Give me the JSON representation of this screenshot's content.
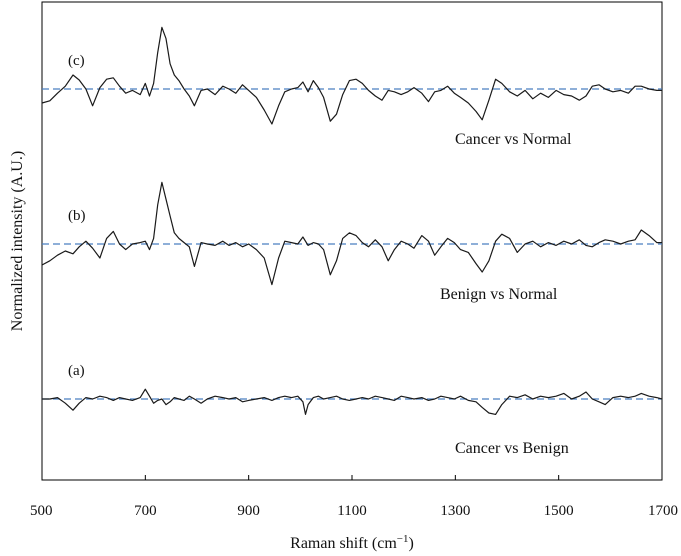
{
  "chart_data": {
    "type": "line",
    "title": "",
    "xlabel": "Raman shift (cm",
    "xlabel_sup": "−1",
    "xlabel_close": ")",
    "ylabel": "Normalized intensity (A.U.)",
    "xlim": [
      500,
      1700
    ],
    "xticks": [
      500,
      700,
      900,
      1100,
      1300,
      1500,
      1700
    ],
    "yticks_shown": false,
    "grid": false,
    "legend": "none",
    "colors": {
      "spectrum": "#1a1a1a",
      "baseline": "#4a7fc1",
      "axis": "#000000"
    },
    "series": [
      {
        "tag": "(c)",
        "label": "Cancer vs Normal",
        "points": [
          [
            500,
            -0.5
          ],
          [
            515,
            -0.42
          ],
          [
            530,
            -0.15
          ],
          [
            545,
            0.1
          ],
          [
            560,
            0.5
          ],
          [
            572,
            0.32
          ],
          [
            585,
            0.0
          ],
          [
            598,
            -0.6
          ],
          [
            612,
            0.05
          ],
          [
            625,
            0.35
          ],
          [
            638,
            0.4
          ],
          [
            650,
            0.1
          ],
          [
            662,
            -0.15
          ],
          [
            675,
            -0.05
          ],
          [
            690,
            -0.2
          ],
          [
            700,
            0.2
          ],
          [
            708,
            -0.25
          ],
          [
            716,
            0.2
          ],
          [
            724,
            1.3
          ],
          [
            732,
            2.2
          ],
          [
            740,
            1.8
          ],
          [
            748,
            0.9
          ],
          [
            756,
            0.5
          ],
          [
            765,
            0.3
          ],
          [
            775,
            0.0
          ],
          [
            785,
            -0.25
          ],
          [
            795,
            -0.6
          ],
          [
            808,
            -0.05
          ],
          [
            820,
            0.0
          ],
          [
            835,
            -0.2
          ],
          [
            850,
            0.1
          ],
          [
            862,
            0.0
          ],
          [
            875,
            -0.15
          ],
          [
            888,
            0.15
          ],
          [
            900,
            -0.05
          ],
          [
            915,
            -0.3
          ],
          [
            930,
            -0.75
          ],
          [
            945,
            -1.25
          ],
          [
            958,
            -0.6
          ],
          [
            970,
            -0.1
          ],
          [
            983,
            0.0
          ],
          [
            995,
            0.05
          ],
          [
            1005,
            0.25
          ],
          [
            1015,
            -0.1
          ],
          [
            1025,
            0.3
          ],
          [
            1035,
            0.05
          ],
          [
            1045,
            -0.3
          ],
          [
            1058,
            -1.15
          ],
          [
            1070,
            -0.9
          ],
          [
            1082,
            -0.2
          ],
          [
            1095,
            0.3
          ],
          [
            1108,
            0.35
          ],
          [
            1120,
            0.2
          ],
          [
            1132,
            -0.05
          ],
          [
            1145,
            -0.25
          ],
          [
            1158,
            -0.4
          ],
          [
            1170,
            -0.05
          ],
          [
            1182,
            -0.1
          ],
          [
            1195,
            -0.2
          ],
          [
            1208,
            -0.1
          ],
          [
            1220,
            0.05
          ],
          [
            1235,
            -0.15
          ],
          [
            1248,
            -0.45
          ],
          [
            1260,
            -0.1
          ],
          [
            1272,
            -0.05
          ],
          [
            1285,
            0.1
          ],
          [
            1298,
            -0.15
          ],
          [
            1310,
            -0.3
          ],
          [
            1325,
            -0.5
          ],
          [
            1340,
            -0.8
          ],
          [
            1352,
            -1.1
          ],
          [
            1365,
            -0.4
          ],
          [
            1378,
            0.35
          ],
          [
            1390,
            0.2
          ],
          [
            1405,
            -0.1
          ],
          [
            1420,
            -0.25
          ],
          [
            1435,
            -0.05
          ],
          [
            1450,
            -0.35
          ],
          [
            1465,
            -0.15
          ],
          [
            1480,
            -0.3
          ],
          [
            1495,
            -0.05
          ],
          [
            1510,
            -0.2
          ],
          [
            1525,
            -0.25
          ],
          [
            1540,
            -0.4
          ],
          [
            1553,
            -0.25
          ],
          [
            1565,
            0.1
          ],
          [
            1578,
            0.15
          ],
          [
            1590,
            0.0
          ],
          [
            1605,
            -0.1
          ],
          [
            1620,
            -0.05
          ],
          [
            1635,
            -0.15
          ],
          [
            1648,
            0.1
          ],
          [
            1660,
            0.1
          ],
          [
            1675,
            0.0
          ],
          [
            1690,
            -0.05
          ],
          [
            1700,
            -0.05
          ]
        ]
      },
      {
        "tag": "(b)",
        "label": "Benign vs Normal",
        "points": [
          [
            500,
            -0.75
          ],
          [
            515,
            -0.6
          ],
          [
            530,
            -0.4
          ],
          [
            545,
            -0.25
          ],
          [
            560,
            -0.35
          ],
          [
            572,
            -0.1
          ],
          [
            585,
            0.1
          ],
          [
            598,
            -0.15
          ],
          [
            612,
            -0.5
          ],
          [
            625,
            0.2
          ],
          [
            638,
            0.45
          ],
          [
            650,
            0.0
          ],
          [
            662,
            -0.2
          ],
          [
            675,
            0.0
          ],
          [
            690,
            0.05
          ],
          [
            700,
            0.1
          ],
          [
            708,
            -0.2
          ],
          [
            716,
            0.2
          ],
          [
            724,
            1.4
          ],
          [
            732,
            2.2
          ],
          [
            740,
            1.6
          ],
          [
            748,
            1.0
          ],
          [
            756,
            0.4
          ],
          [
            765,
            0.2
          ],
          [
            775,
            0.05
          ],
          [
            785,
            -0.1
          ],
          [
            795,
            -0.8
          ],
          [
            808,
            0.05
          ],
          [
            820,
            0.0
          ],
          [
            835,
            -0.05
          ],
          [
            850,
            0.1
          ],
          [
            862,
            -0.05
          ],
          [
            875,
            0.05
          ],
          [
            888,
            -0.1
          ],
          [
            900,
            0.0
          ],
          [
            915,
            -0.2
          ],
          [
            930,
            -0.5
          ],
          [
            945,
            -1.45
          ],
          [
            958,
            -0.5
          ],
          [
            970,
            0.1
          ],
          [
            983,
            0.05
          ],
          [
            995,
            0.0
          ],
          [
            1005,
            0.25
          ],
          [
            1015,
            -0.05
          ],
          [
            1025,
            0.05
          ],
          [
            1035,
            0.0
          ],
          [
            1045,
            -0.2
          ],
          [
            1058,
            -1.1
          ],
          [
            1070,
            -0.6
          ],
          [
            1082,
            0.2
          ],
          [
            1095,
            0.4
          ],
          [
            1108,
            0.3
          ],
          [
            1120,
            0.05
          ],
          [
            1132,
            -0.1
          ],
          [
            1145,
            0.15
          ],
          [
            1158,
            -0.1
          ],
          [
            1170,
            -0.6
          ],
          [
            1182,
            -0.2
          ],
          [
            1195,
            0.1
          ],
          [
            1208,
            0.0
          ],
          [
            1220,
            -0.15
          ],
          [
            1235,
            0.3
          ],
          [
            1248,
            0.1
          ],
          [
            1260,
            -0.4
          ],
          [
            1272,
            -0.1
          ],
          [
            1285,
            0.2
          ],
          [
            1298,
            0.05
          ],
          [
            1310,
            -0.2
          ],
          [
            1325,
            -0.3
          ],
          [
            1340,
            -0.7
          ],
          [
            1352,
            -1.0
          ],
          [
            1365,
            -0.6
          ],
          [
            1378,
            0.1
          ],
          [
            1390,
            0.35
          ],
          [
            1405,
            0.2
          ],
          [
            1420,
            -0.3
          ],
          [
            1435,
            0.0
          ],
          [
            1450,
            0.1
          ],
          [
            1465,
            -0.1
          ],
          [
            1480,
            0.05
          ],
          [
            1495,
            -0.05
          ],
          [
            1510,
            0.1
          ],
          [
            1525,
            0.0
          ],
          [
            1540,
            0.15
          ],
          [
            1553,
            -0.05
          ],
          [
            1565,
            -0.1
          ],
          [
            1578,
            0.05
          ],
          [
            1590,
            0.15
          ],
          [
            1605,
            0.1
          ],
          [
            1620,
            0.0
          ],
          [
            1635,
            0.1
          ],
          [
            1648,
            0.15
          ],
          [
            1660,
            0.5
          ],
          [
            1675,
            0.3
          ],
          [
            1690,
            0.05
          ],
          [
            1700,
            0.05
          ]
        ]
      },
      {
        "tag": "(a)",
        "label": "Cancer vs Benign",
        "points": [
          [
            500,
            0.0
          ],
          [
            515,
            0.0
          ],
          [
            530,
            0.05
          ],
          [
            545,
            -0.15
          ],
          [
            560,
            -0.4
          ],
          [
            572,
            -0.15
          ],
          [
            585,
            0.05
          ],
          [
            598,
            0.0
          ],
          [
            612,
            0.1
          ],
          [
            625,
            0.05
          ],
          [
            638,
            -0.05
          ],
          [
            650,
            0.05
          ],
          [
            662,
            0.0
          ],
          [
            675,
            -0.05
          ],
          [
            690,
            0.05
          ],
          [
            700,
            0.35
          ],
          [
            708,
            0.1
          ],
          [
            716,
            -0.15
          ],
          [
            724,
            -0.05
          ],
          [
            732,
            0.0
          ],
          [
            740,
            -0.2
          ],
          [
            748,
            -0.1
          ],
          [
            756,
            0.05
          ],
          [
            765,
            0.0
          ],
          [
            775,
            -0.05
          ],
          [
            785,
            0.1
          ],
          [
            795,
            0.0
          ],
          [
            808,
            -0.15
          ],
          [
            820,
            0.0
          ],
          [
            835,
            0.1
          ],
          [
            850,
            0.05
          ],
          [
            862,
            0.0
          ],
          [
            875,
            0.05
          ],
          [
            888,
            -0.1
          ],
          [
            900,
            -0.05
          ],
          [
            915,
            0.0
          ],
          [
            930,
            0.05
          ],
          [
            945,
            -0.05
          ],
          [
            958,
            0.05
          ],
          [
            970,
            0.1
          ],
          [
            983,
            0.05
          ],
          [
            995,
            0.1
          ],
          [
            1005,
            -0.1
          ],
          [
            1010,
            -0.55
          ],
          [
            1015,
            -0.2
          ],
          [
            1025,
            0.05
          ],
          [
            1035,
            0.1
          ],
          [
            1045,
            0.0
          ],
          [
            1058,
            0.05
          ],
          [
            1070,
            0.1
          ],
          [
            1082,
            0.0
          ],
          [
            1095,
            -0.05
          ],
          [
            1108,
            0.0
          ],
          [
            1120,
            0.05
          ],
          [
            1132,
            0.0
          ],
          [
            1145,
            0.1
          ],
          [
            1158,
            0.05
          ],
          [
            1170,
            0.0
          ],
          [
            1182,
            -0.05
          ],
          [
            1195,
            0.1
          ],
          [
            1208,
            0.05
          ],
          [
            1220,
            0.0
          ],
          [
            1235,
            0.05
          ],
          [
            1248,
            -0.05
          ],
          [
            1260,
            0.0
          ],
          [
            1272,
            0.1
          ],
          [
            1285,
            0.05
          ],
          [
            1298,
            0.0
          ],
          [
            1310,
            0.1
          ],
          [
            1325,
            -0.05
          ],
          [
            1340,
            -0.1
          ],
          [
            1352,
            -0.3
          ],
          [
            1365,
            -0.5
          ],
          [
            1378,
            -0.55
          ],
          [
            1390,
            -0.2
          ],
          [
            1405,
            0.1
          ],
          [
            1420,
            0.05
          ],
          [
            1435,
            0.15
          ],
          [
            1450,
            0.0
          ],
          [
            1465,
            0.1
          ],
          [
            1480,
            0.05
          ],
          [
            1495,
            0.1
          ],
          [
            1510,
            0.2
          ],
          [
            1525,
            0.0
          ],
          [
            1540,
            0.1
          ],
          [
            1553,
            0.25
          ],
          [
            1565,
            0.0
          ],
          [
            1578,
            -0.1
          ],
          [
            1590,
            -0.2
          ],
          [
            1605,
            0.05
          ],
          [
            1620,
            0.1
          ],
          [
            1635,
            0.05
          ],
          [
            1648,
            0.1
          ],
          [
            1660,
            0.2
          ],
          [
            1675,
            0.1
          ],
          [
            1690,
            0.05
          ],
          [
            1700,
            0.0
          ]
        ]
      }
    ]
  }
}
